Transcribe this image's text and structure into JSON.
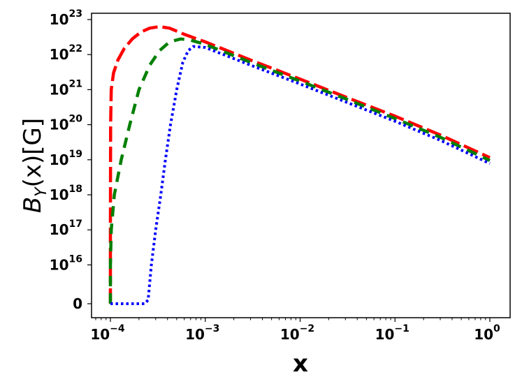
{
  "chart_data": {
    "type": "line",
    "title": "",
    "xlabel": "x",
    "ylabel": "B_Y(x)[G]",
    "xscale": "log",
    "yscale": "log (with 0 floor)",
    "xlim": [
      7.5e-05,
      1.35
    ],
    "ylim_ticks": [
      "0",
      "1e16",
      "1e17",
      "1e18",
      "1e19",
      "1e20",
      "1e21",
      "1e22",
      "1e23"
    ],
    "grid": false,
    "legend": null,
    "x_ticks": [
      {
        "value": 0.0001,
        "base": "10",
        "exp": "−4"
      },
      {
        "value": 0.001,
        "base": "10",
        "exp": "−3"
      },
      {
        "value": 0.01,
        "base": "10",
        "exp": "−2"
      },
      {
        "value": 0.1,
        "base": "10",
        "exp": "−1"
      },
      {
        "value": 1,
        "base": "10",
        "exp": "0"
      }
    ],
    "y_ticks": [
      {
        "value": 0,
        "base": "0",
        "exp": ""
      },
      {
        "value": 1e+16,
        "base": "10",
        "exp": "16"
      },
      {
        "value": 1e+17,
        "base": "10",
        "exp": "17"
      },
      {
        "value": 1e+18,
        "base": "10",
        "exp": "18"
      },
      {
        "value": 1e+19,
        "base": "10",
        "exp": "19"
      },
      {
        "value": 1e+20,
        "base": "10",
        "exp": "20"
      },
      {
        "value": 1e+21,
        "base": "10",
        "exp": "21"
      },
      {
        "value": 1e+22,
        "base": "10",
        "exp": "22"
      },
      {
        "value": 1e+23,
        "base": "10",
        "exp": "23"
      }
    ],
    "series": [
      {
        "name": "red-dashed",
        "color": "#ff0000",
        "style": "long-dash",
        "points": [
          [
            0.0001,
            0
          ],
          [
            0.0001,
            1e+17
          ],
          [
            0.0001005,
            1e+20
          ],
          [
            0.000102,
            1e+21
          ],
          [
            0.000108,
            3e+21
          ],
          [
            0.00012,
            7e+21
          ],
          [
            0.00014,
            1.5e+22
          ],
          [
            0.00017,
            2.8e+22
          ],
          [
            0.00021,
            4.4e+22
          ],
          [
            0.00026,
            5.7e+22
          ],
          [
            0.00033,
            6.3e+22
          ],
          [
            0.00042,
            5.7e+22
          ],
          [
            0.0006,
            3.8e+22
          ],
          [
            0.001,
            2.3e+22
          ],
          [
            0.003,
            7e+21
          ],
          [
            0.01,
            2e+21
          ],
          [
            0.03,
            6.2e+20
          ],
          [
            0.1,
            1.75e+20
          ],
          [
            0.3,
            5.1e+19
          ],
          [
            1,
            1.15e+19
          ]
        ]
      },
      {
        "name": "green-dashed",
        "color": "#008000",
        "style": "dash",
        "points": [
          [
            0.0001,
            0
          ],
          [
            0.0001,
            1e+16
          ],
          [
            0.000102,
            1e+17
          ],
          [
            0.00011,
            1e+18
          ],
          [
            0.00013,
            1e+19
          ],
          [
            0.00016,
            1e+20
          ],
          [
            0.0002,
            1e+21
          ],
          [
            0.00026,
            5e+21
          ],
          [
            0.00033,
            1.3e+22
          ],
          [
            0.00042,
            2.3e+22
          ],
          [
            0.00055,
            2.8e+22
          ],
          [
            0.0007,
            2.6e+22
          ],
          [
            0.001,
            1.95e+22
          ],
          [
            0.003,
            6e+21
          ],
          [
            0.01,
            1.75e+21
          ],
          [
            0.03,
            5.5e+20
          ],
          [
            0.1,
            1.5e+20
          ],
          [
            0.3,
            4.4e+19
          ],
          [
            1,
            9.5e+18
          ]
        ]
      },
      {
        "name": "blue-dotted",
        "color": "#0000ff",
        "style": "dot",
        "points": [
          [
            0.0001,
            0
          ],
          [
            0.00016,
            0
          ],
          [
            0.00023,
            0
          ],
          [
            0.00025,
            1000000000000000.0
          ],
          [
            0.00027,
            1e+16
          ],
          [
            0.0003,
            1e+17
          ],
          [
            0.00034,
            1e+18
          ],
          [
            0.00038,
            1e+19
          ],
          [
            0.00043,
            1e+20
          ],
          [
            0.0005,
            1e+21
          ],
          [
            0.00058,
            6e+21
          ],
          [
            0.00066,
            1.3e+22
          ],
          [
            0.00075,
            1.7e+22
          ],
          [
            0.001,
            1.6e+22
          ],
          [
            0.003,
            5e+21
          ],
          [
            0.01,
            1.45e+21
          ],
          [
            0.03,
            4.5e+20
          ],
          [
            0.1,
            1.25e+20
          ],
          [
            0.3,
            3.6e+19
          ],
          [
            1,
            7.8e+18
          ]
        ]
      }
    ]
  }
}
